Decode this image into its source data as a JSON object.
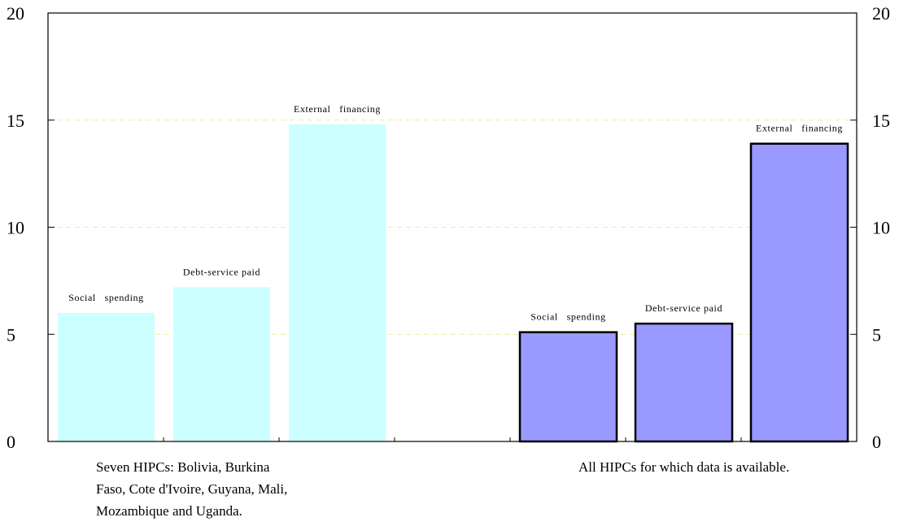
{
  "chart_data": {
    "type": "bar",
    "ylim": [
      0,
      20
    ],
    "yticks": [
      0,
      5,
      10,
      15,
      20
    ],
    "grid": "horizontal-dashed",
    "axes": "dual-y",
    "groups": [
      {
        "caption": "Seven HIPCs: Bolivia, Burkina Faso, Cote d'Ivoire, Guyana, Mali, Mozambique and Uganda.",
        "color": "#ccffff",
        "outline": false,
        "categories": [
          "Social   spending",
          "Debt-service paid",
          "External   financing"
        ],
        "values": [
          6.0,
          7.2,
          14.8
        ]
      },
      {
        "caption": "All HIPCs for which data is available.",
        "color": "#9999ff",
        "outline": true,
        "categories": [
          "Social   spending",
          "Debt-service paid",
          "External   financing"
        ],
        "values": [
          5.1,
          5.5,
          13.9
        ]
      }
    ]
  }
}
